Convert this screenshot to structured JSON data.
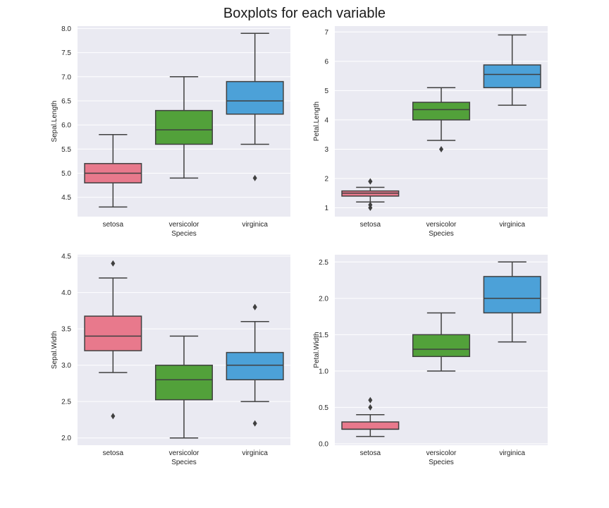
{
  "figure": {
    "title": "Boxplots for each variable"
  },
  "palette": {
    "setosa": "#e8798c",
    "versicolor": "#52a13a",
    "virginica": "#4ca1d8",
    "axes_background": "#eaeaf2",
    "grid": "#ffffff",
    "box_edge": "#404040"
  },
  "chart_data": [
    {
      "type": "box",
      "id": "sepal-length",
      "xlabel": "Species",
      "ylabel": "Sepal.Length",
      "categories": [
        "setosa",
        "versicolor",
        "virginica"
      ],
      "ylim": [
        4.1,
        8.05
      ],
      "yticks": [
        4.5,
        5.0,
        5.5,
        6.0,
        6.5,
        7.0,
        7.5,
        8.0
      ],
      "ytick_labels": [
        "4.5",
        "5.0",
        "5.5",
        "6.0",
        "6.5",
        "7.0",
        "7.5",
        "8.0"
      ],
      "grid": true,
      "boxes": [
        {
          "category": "setosa",
          "whisker_low": 4.3,
          "q1": 4.8,
          "median": 5.0,
          "q3": 5.2,
          "whisker_high": 5.8,
          "outliers": []
        },
        {
          "category": "versicolor",
          "whisker_low": 4.9,
          "q1": 5.6,
          "median": 5.9,
          "q3": 6.3,
          "whisker_high": 7.0,
          "outliers": []
        },
        {
          "category": "virginica",
          "whisker_low": 5.6,
          "q1": 6.225,
          "median": 6.5,
          "q3": 6.9,
          "whisker_high": 7.9,
          "outliers": [
            4.9
          ]
        }
      ]
    },
    {
      "type": "box",
      "id": "petal-length",
      "xlabel": "Species",
      "ylabel": "Petal.Length",
      "categories": [
        "setosa",
        "versicolor",
        "virginica"
      ],
      "ylim": [
        0.7,
        7.2
      ],
      "yticks": [
        1,
        2,
        3,
        4,
        5,
        6,
        7
      ],
      "ytick_labels": [
        "1",
        "2",
        "3",
        "4",
        "5",
        "6",
        "7"
      ],
      "grid": true,
      "boxes": [
        {
          "category": "setosa",
          "whisker_low": 1.2,
          "q1": 1.4,
          "median": 1.5,
          "q3": 1.575,
          "whisker_high": 1.7,
          "outliers": [
            1.0,
            1.1,
            1.9,
            1.9
          ]
        },
        {
          "category": "versicolor",
          "whisker_low": 3.3,
          "q1": 4.0,
          "median": 4.35,
          "q3": 4.6,
          "whisker_high": 5.1,
          "outliers": [
            3.0
          ]
        },
        {
          "category": "virginica",
          "whisker_low": 4.5,
          "q1": 5.1,
          "median": 5.55,
          "q3": 5.875,
          "whisker_high": 6.9,
          "outliers": []
        }
      ]
    },
    {
      "type": "box",
      "id": "sepal-width",
      "xlabel": "Species",
      "ylabel": "Sepal.Width",
      "categories": [
        "setosa",
        "versicolor",
        "virginica"
      ],
      "ylim": [
        1.9,
        4.52
      ],
      "yticks": [
        2.0,
        2.5,
        3.0,
        3.5,
        4.0,
        4.5
      ],
      "ytick_labels": [
        "2.0",
        "2.5",
        "3.0",
        "3.5",
        "4.0",
        "4.5"
      ],
      "grid": true,
      "boxes": [
        {
          "category": "setosa",
          "whisker_low": 2.9,
          "q1": 3.2,
          "median": 3.4,
          "q3": 3.675,
          "whisker_high": 4.2,
          "outliers": [
            2.3,
            4.4
          ]
        },
        {
          "category": "versicolor",
          "whisker_low": 2.0,
          "q1": 2.525,
          "median": 2.8,
          "q3": 3.0,
          "whisker_high": 3.4,
          "outliers": []
        },
        {
          "category": "virginica",
          "whisker_low": 2.5,
          "q1": 2.8,
          "median": 3.0,
          "q3": 3.175,
          "whisker_high": 3.6,
          "outliers": [
            2.2,
            3.8,
            3.8
          ]
        }
      ]
    },
    {
      "type": "box",
      "id": "petal-width",
      "xlabel": "Species",
      "ylabel": "Petal.Width",
      "categories": [
        "setosa",
        "versicolor",
        "virginica"
      ],
      "ylim": [
        -0.02,
        2.6
      ],
      "yticks": [
        0.0,
        0.5,
        1.0,
        1.5,
        2.0,
        2.5
      ],
      "ytick_labels": [
        "0.0",
        "0.5",
        "1.0",
        "1.5",
        "2.0",
        "2.5"
      ],
      "grid": true,
      "boxes": [
        {
          "category": "setosa",
          "whisker_low": 0.1,
          "q1": 0.2,
          "median": 0.2,
          "q3": 0.3,
          "whisker_high": 0.4,
          "outliers": [
            0.5,
            0.6
          ]
        },
        {
          "category": "versicolor",
          "whisker_low": 1.0,
          "q1": 1.2,
          "median": 1.3,
          "q3": 1.5,
          "whisker_high": 1.8,
          "outliers": []
        },
        {
          "category": "virginica",
          "whisker_low": 1.4,
          "q1": 1.8,
          "median": 2.0,
          "q3": 2.3,
          "whisker_high": 2.5,
          "outliers": []
        }
      ]
    }
  ]
}
